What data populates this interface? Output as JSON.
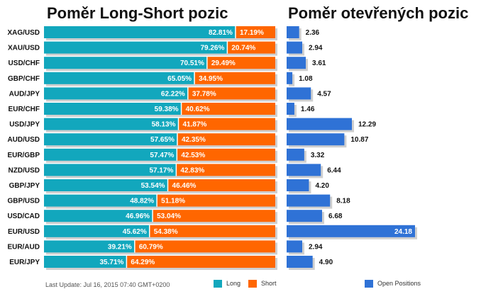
{
  "colors": {
    "long": "#12a7bd",
    "short": "#ff6600",
    "open_positions": "#2f72d6",
    "bar_shadow": "#cfcfcf"
  },
  "footer": {
    "last_update": "Last Update: Jul 16, 2015 07:40 GMT+0200"
  },
  "chart_data": [
    {
      "type": "bar",
      "stacked": true,
      "orientation": "horizontal",
      "title": "Poměr Long-Short pozic",
      "categories": [
        "XAG/USD",
        "XAU/USD",
        "USD/CHF",
        "GBP/CHF",
        "AUD/JPY",
        "EUR/CHF",
        "USD/JPY",
        "AUD/USD",
        "EUR/GBP",
        "NZD/USD",
        "GBP/JPY",
        "GBP/USD",
        "USD/CAD",
        "EUR/USD",
        "EUR/AUD",
        "EUR/JPY"
      ],
      "series": [
        {
          "name": "Long",
          "values": [
            82.81,
            79.26,
            70.51,
            65.05,
            62.22,
            59.38,
            58.13,
            57.65,
            57.47,
            57.17,
            53.54,
            48.82,
            46.96,
            45.62,
            39.21,
            35.71
          ],
          "labels": [
            "82.81%",
            "79.26%",
            "70.51%",
            "65.05%",
            "62.22%",
            "59.38%",
            "58.13%",
            "57.65%",
            "57.47%",
            "57.17%",
            "53.54%",
            "48.82%",
            "46.96%",
            "45.62%",
            "39.21%",
            "35.71%"
          ]
        },
        {
          "name": "Short",
          "values": [
            17.19,
            20.74,
            29.49,
            34.95,
            37.78,
            40.62,
            41.87,
            42.35,
            42.53,
            42.83,
            46.46,
            51.18,
            53.04,
            54.38,
            60.79,
            64.29
          ],
          "labels": [
            "17.19%",
            "20.74%",
            "29.49%",
            "34.95%",
            "37.78%",
            "40.62%",
            "41.87%",
            "42.35%",
            "42.53%",
            "42.83%",
            "46.46%",
            "51.18%",
            "53.04%",
            "54.38%",
            "60.79%",
            "64.29%"
          ]
        }
      ],
      "xlim": [
        0,
        100
      ],
      "legend": "bottom"
    },
    {
      "type": "bar",
      "orientation": "horizontal",
      "title": "Poměr otevřených pozic",
      "categories": [
        "XAG/USD",
        "XAU/USD",
        "USD/CHF",
        "GBP/CHF",
        "AUD/JPY",
        "EUR/CHF",
        "USD/JPY",
        "AUD/USD",
        "EUR/GBP",
        "NZD/USD",
        "GBP/JPY",
        "GBP/USD",
        "USD/CAD",
        "EUR/USD",
        "EUR/AUD",
        "EUR/JPY"
      ],
      "series": [
        {
          "name": "Open Positions",
          "values": [
            2.36,
            2.94,
            3.61,
            1.08,
            4.57,
            1.46,
            12.29,
            10.87,
            3.32,
            6.44,
            4.2,
            8.18,
            6.68,
            24.18,
            2.94,
            4.9
          ],
          "labels": [
            "2.36",
            "2.94",
            "3.61",
            "1.08",
            "4.57",
            "1.46",
            "12.29",
            "10.87",
            "3.32",
            "6.44",
            "4.20",
            "8.18",
            "6.68",
            "24.18",
            "2.94",
            "4.90"
          ]
        }
      ],
      "xlim": [
        0,
        24.18
      ],
      "legend": "bottom"
    }
  ]
}
